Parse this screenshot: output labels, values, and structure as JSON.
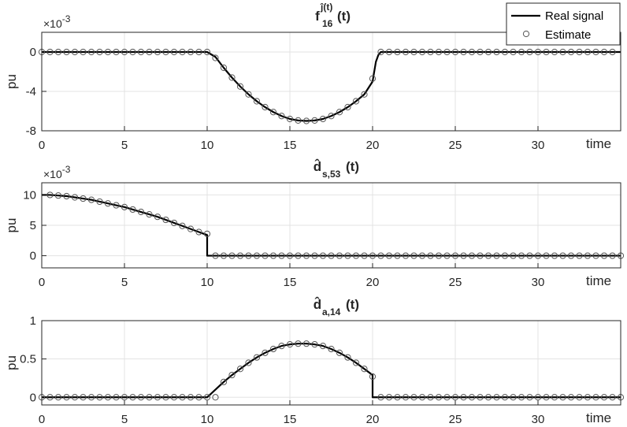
{
  "chart_data": [
    {
      "type": "line",
      "title": {
        "main": "f",
        "sub": "16",
        "sup": "ĵ(t)",
        "tail": "(t)"
      },
      "xlabel": "time",
      "ylabel": "pu",
      "exponent": {
        "base": "×10",
        "power": "-3"
      },
      "xlim": [
        0,
        35
      ],
      "ylim": [
        -8,
        2
      ],
      "yticks": [
        0,
        -4,
        -8
      ],
      "xticks": [
        0,
        5,
        10,
        15,
        20,
        25,
        30
      ],
      "grid": true,
      "legend": {
        "position": "top-right",
        "entries": [
          "Real signal",
          "Estimate"
        ]
      },
      "series": [
        {
          "name": "Real signal",
          "style": "line",
          "x": [
            0,
            10,
            10.5,
            11,
            11.5,
            12,
            12.5,
            13,
            13.5,
            14,
            14.5,
            15,
            15.5,
            16,
            16.5,
            17,
            17.5,
            18,
            18.5,
            19,
            19.5,
            20,
            20.1,
            20.2,
            20.35,
            20.5,
            35
          ],
          "y": [
            0,
            0,
            -0.5,
            -1.6,
            -2.6,
            -3.5,
            -4.3,
            -5.0,
            -5.6,
            -6.1,
            -6.5,
            -6.8,
            -6.95,
            -7.0,
            -6.95,
            -6.8,
            -6.5,
            -6.1,
            -5.6,
            -5.0,
            -4.3,
            -3.0,
            -2.0,
            -1.0,
            -0.3,
            0,
            0
          ]
        },
        {
          "name": "Estimate",
          "style": "marker",
          "x": [
            0,
            0.5,
            1,
            1.5,
            2,
            2.5,
            3,
            3.5,
            4,
            4.5,
            5,
            5.5,
            6,
            6.5,
            7,
            7.5,
            8,
            8.5,
            9,
            9.5,
            10,
            10.5,
            11,
            11.5,
            12,
            12.5,
            13,
            13.5,
            14,
            14.5,
            15,
            15.5,
            16,
            16.5,
            17,
            17.5,
            18,
            18.5,
            19,
            19.5,
            20,
            20.5,
            21,
            21.5,
            22,
            22.5,
            23,
            23.5,
            24,
            24.5,
            25,
            25.5,
            26,
            26.5,
            27,
            27.5,
            28,
            28.5,
            29,
            29.5,
            30,
            30.5,
            31,
            31.5,
            32,
            32.5,
            33,
            33.5,
            34,
            34.5
          ],
          "y": [
            0,
            0,
            0,
            0,
            0,
            0,
            0,
            0,
            0,
            0,
            0,
            0,
            0,
            0,
            0,
            0,
            0,
            0,
            0,
            0,
            0,
            -0.6,
            -1.6,
            -2.6,
            -3.5,
            -4.3,
            -5.0,
            -5.6,
            -6.1,
            -6.5,
            -6.8,
            -6.95,
            -7.0,
            -6.95,
            -6.8,
            -6.5,
            -6.1,
            -5.6,
            -5.0,
            -4.3,
            -2.7,
            0,
            0,
            0,
            0,
            0,
            0,
            0,
            0,
            0,
            0,
            0,
            0,
            0,
            0,
            0,
            0,
            0,
            0,
            0,
            0,
            0,
            0,
            0,
            0,
            0,
            0,
            0,
            0,
            0
          ]
        }
      ]
    },
    {
      "type": "line",
      "title": {
        "main": "d̂",
        "sub": "s,53",
        "sup": "",
        "tail": "(t)"
      },
      "xlabel": "time",
      "ylabel": "pu",
      "exponent": {
        "base": "×10",
        "power": "-3"
      },
      "xlim": [
        0,
        35
      ],
      "ylim": [
        -2,
        12
      ],
      "yticks": [
        0,
        5,
        10
      ],
      "xticks": [
        0,
        5,
        10,
        15,
        20,
        25,
        30
      ],
      "grid": true,
      "series": [
        {
          "name": "Real signal",
          "style": "line",
          "x": [
            0,
            0.5,
            1,
            1.5,
            2,
            2.5,
            3,
            3.5,
            4,
            4.5,
            5,
            5.5,
            6,
            6.5,
            7,
            7.5,
            8,
            8.5,
            9,
            9.5,
            10,
            10.001,
            35
          ],
          "y": [
            10.0,
            10.0,
            9.9,
            9.8,
            9.6,
            9.4,
            9.2,
            8.9,
            8.6,
            8.3,
            8.0,
            7.6,
            7.2,
            6.8,
            6.4,
            5.9,
            5.4,
            4.9,
            4.4,
            3.9,
            3.4,
            0,
            0
          ]
        },
        {
          "name": "Estimate",
          "style": "marker",
          "x": [
            0.5,
            1,
            1.5,
            2,
            2.5,
            3,
            3.5,
            4,
            4.5,
            5,
            5.5,
            6,
            6.5,
            7,
            7.5,
            8,
            8.5,
            9,
            9.5,
            10,
            10.5,
            11,
            11.5,
            12,
            12.5,
            13,
            13.5,
            14,
            14.5,
            15,
            15.5,
            16,
            16.5,
            17,
            17.5,
            18,
            18.5,
            19,
            19.5,
            20,
            20.5,
            21,
            21.5,
            22,
            22.5,
            23,
            23.5,
            24,
            24.5,
            25,
            25.5,
            26,
            26.5,
            27,
            27.5,
            28,
            28.5,
            29,
            29.5,
            30,
            30.5,
            31,
            31.5,
            32,
            32.5,
            33,
            33.5,
            34,
            34.5,
            35
          ],
          "y": [
            10.0,
            9.9,
            9.8,
            9.6,
            9.4,
            9.2,
            8.9,
            8.6,
            8.3,
            8.0,
            7.6,
            7.2,
            6.8,
            6.4,
            5.9,
            5.4,
            4.9,
            4.4,
            3.9,
            3.6,
            0,
            0,
            0,
            0,
            0,
            0,
            0,
            0,
            0,
            0,
            0,
            0,
            0,
            0,
            0,
            0,
            0,
            0,
            0,
            0,
            0,
            0,
            0,
            0,
            0,
            0,
            0,
            0,
            0,
            0,
            0,
            0,
            0,
            0,
            0,
            0,
            0,
            0,
            0,
            0,
            0,
            0,
            0,
            0,
            0,
            0,
            0,
            0,
            0,
            0
          ]
        }
      ]
    },
    {
      "type": "line",
      "title": {
        "main": "d̂",
        "sub": "a,14",
        "sup": "",
        "tail": "(t)"
      },
      "xlabel": "time",
      "ylabel": "pu",
      "exponent": null,
      "xlim": [
        0,
        35
      ],
      "ylim": [
        -0.1,
        1
      ],
      "yticks": [
        0,
        0.5,
        1
      ],
      "xticks": [
        0,
        5,
        10,
        15,
        20,
        25,
        30
      ],
      "grid": true,
      "series": [
        {
          "name": "Real signal",
          "style": "line",
          "x": [
            0,
            10,
            10.5,
            11,
            11.5,
            12,
            12.5,
            13,
            13.5,
            14,
            14.5,
            15,
            15.5,
            16,
            16.5,
            17,
            17.5,
            18,
            18.5,
            19,
            19.5,
            20,
            20.001,
            35
          ],
          "y": [
            0,
            0,
            0.1,
            0.2,
            0.29,
            0.37,
            0.45,
            0.52,
            0.58,
            0.63,
            0.67,
            0.69,
            0.7,
            0.7,
            0.69,
            0.67,
            0.63,
            0.58,
            0.52,
            0.45,
            0.37,
            0.29,
            0,
            0
          ]
        },
        {
          "name": "Estimate",
          "style": "marker",
          "x": [
            0,
            0.5,
            1,
            1.5,
            2,
            2.5,
            3,
            3.5,
            4,
            4.5,
            5,
            5.5,
            6,
            6.5,
            7,
            7.5,
            8,
            8.5,
            9,
            9.5,
            10,
            10.5,
            11,
            11.5,
            12,
            12.5,
            13,
            13.5,
            14,
            14.5,
            15,
            15.5,
            16,
            16.5,
            17,
            17.5,
            18,
            18.5,
            19,
            19.5,
            20,
            20.5,
            21,
            21.5,
            22,
            22.5,
            23,
            23.5,
            24,
            24.5,
            25,
            25.5,
            26,
            26.5,
            27,
            27.5,
            28,
            28.5,
            29,
            29.5,
            30,
            30.5,
            31,
            31.5,
            32,
            32.5,
            33,
            33.5,
            34,
            34.5,
            35
          ],
          "y": [
            0,
            0,
            0,
            0,
            0,
            0,
            0,
            0,
            0,
            0,
            0,
            0,
            0,
            0,
            0,
            0,
            0,
            0,
            0,
            0,
            0,
            0,
            0.2,
            0.29,
            0.37,
            0.45,
            0.52,
            0.58,
            0.63,
            0.67,
            0.69,
            0.7,
            0.7,
            0.69,
            0.67,
            0.63,
            0.58,
            0.52,
            0.45,
            0.37,
            0.27,
            0,
            0,
            0,
            0,
            0,
            0,
            0,
            0,
            0,
            0,
            0,
            0,
            0,
            0,
            0,
            0,
            0,
            0,
            0,
            0,
            0,
            0,
            0,
            0,
            0,
            0,
            0,
            0,
            0,
            0
          ]
        }
      ]
    }
  ]
}
